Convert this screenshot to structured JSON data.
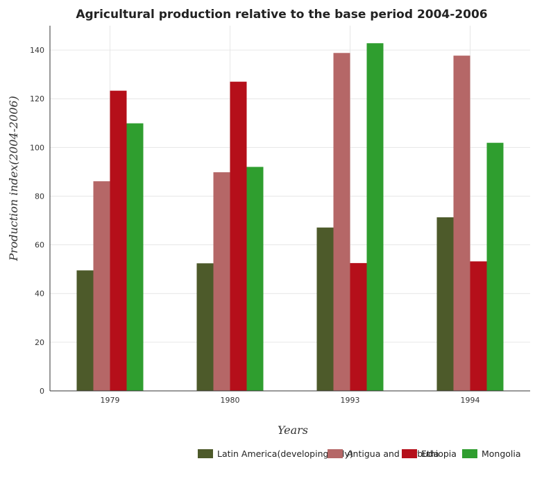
{
  "chart_data": {
    "type": "bar",
    "title": "Agricultural production relative to the base period 2004-2006",
    "xlabel": "Years",
    "ylabel": "Production index(2004-2006)",
    "categories": [
      "1979",
      "1980",
      "1993",
      "1994"
    ],
    "ylim": [
      0,
      150
    ],
    "yticks": [
      0,
      20,
      40,
      60,
      80,
      100,
      120,
      140
    ],
    "grid": true,
    "legend_position": "bottom-right",
    "series": [
      {
        "name": "Latin America(developing only)",
        "color": "#4d5a2a",
        "values": [
          49.5,
          52.4,
          67.1,
          71.3
        ]
      },
      {
        "name": "Antigua and Barbuda",
        "color": "#b56767",
        "values": [
          86.1,
          89.8,
          138.8,
          137.7
        ]
      },
      {
        "name": "Ethiopia",
        "color": "#b50f1a",
        "values": [
          123.3,
          127.0,
          52.5,
          53.2
        ]
      },
      {
        "name": "Mongolia",
        "color": "#2f9e2f",
        "values": [
          109.9,
          92.0,
          142.8,
          101.9
        ]
      }
    ]
  }
}
